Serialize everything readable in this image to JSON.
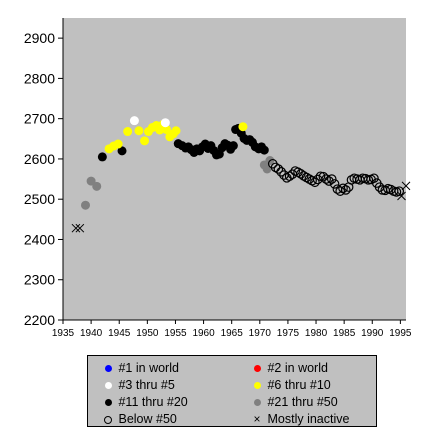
{
  "chart_data": {
    "type": "scatter",
    "x_ticks": [
      1935,
      1940,
      1945,
      1950,
      1955,
      1960,
      1965,
      1970,
      1975,
      1980,
      1985,
      1990,
      1995
    ],
    "y_ticks": [
      2200,
      2300,
      2400,
      2500,
      2600,
      2700,
      2800,
      2900
    ],
    "xlim": [
      1935,
      1996
    ],
    "ylim": [
      2200,
      2950
    ],
    "grid": false,
    "legend_position": "bottom",
    "categories": [
      {
        "key": "r1",
        "label": "#1 in world",
        "color": "#0000ff",
        "marker": "dot"
      },
      {
        "key": "r2",
        "label": "#2 in world",
        "color": "#ff0000",
        "marker": "dot"
      },
      {
        "key": "r3",
        "label": "#3 thru #5",
        "color": "#ffffff",
        "marker": "dot"
      },
      {
        "key": "r6",
        "label": "#6 thru #10",
        "color": "#ffff00",
        "marker": "dot"
      },
      {
        "key": "r11",
        "label": "#11 thru #20",
        "color": "#000000",
        "marker": "dot"
      },
      {
        "key": "r21",
        "label": "#21 thru #50",
        "color": "#808080",
        "marker": "dot"
      },
      {
        "key": "b50",
        "label": "Below #50",
        "color": "#000000",
        "marker": "ring"
      },
      {
        "key": "inactive",
        "label": "Mostly inactive",
        "color": "#000000",
        "marker": "x"
      }
    ],
    "series": [
      {
        "key": "inactive",
        "points": [
          [
            1937.3,
            2428
          ],
          [
            1938.0,
            2428
          ],
          [
            1995.2,
            2508
          ],
          [
            1996.0,
            2533
          ]
        ]
      },
      {
        "key": "r21",
        "points": [
          [
            1939.0,
            2485
          ],
          [
            1940.0,
            2545
          ],
          [
            1941.0,
            2532
          ],
          [
            1970.8,
            2585
          ],
          [
            1971.3,
            2575
          ],
          [
            1971.8,
            2596
          ]
        ]
      },
      {
        "key": "r11",
        "points": [
          [
            1942.0,
            2605
          ],
          [
            1945.5,
            2620
          ],
          [
            1955.5,
            2638
          ],
          [
            1956.2,
            2633
          ],
          [
            1956.8,
            2627
          ],
          [
            1957.3,
            2630
          ],
          [
            1957.8,
            2623
          ],
          [
            1958.3,
            2616
          ],
          [
            1958.8,
            2625
          ],
          [
            1959.3,
            2620
          ],
          [
            1959.8,
            2630
          ],
          [
            1960.3,
            2637
          ],
          [
            1960.8,
            2626
          ],
          [
            1961.3,
            2633
          ],
          [
            1961.8,
            2621
          ],
          [
            1962.3,
            2610
          ],
          [
            1962.8,
            2612
          ],
          [
            1963.3,
            2628
          ],
          [
            1963.8,
            2638
          ],
          [
            1964.3,
            2634
          ],
          [
            1964.8,
            2624
          ],
          [
            1965.3,
            2633
          ],
          [
            1965.7,
            2673
          ],
          [
            1966.2,
            2676
          ],
          [
            1966.7,
            2664
          ],
          [
            1967.2,
            2651
          ],
          [
            1967.7,
            2646
          ],
          [
            1968.2,
            2648
          ],
          [
            1968.7,
            2641
          ],
          [
            1969.2,
            2630
          ],
          [
            1969.8,
            2625
          ],
          [
            1970.3,
            2630
          ],
          [
            1970.8,
            2622
          ]
        ]
      },
      {
        "key": "r6",
        "points": [
          [
            1943.2,
            2625
          ],
          [
            1944.0,
            2632
          ],
          [
            1944.8,
            2637
          ],
          [
            1946.5,
            2668
          ],
          [
            1948.5,
            2670
          ],
          [
            1949.5,
            2645
          ],
          [
            1950.2,
            2668
          ],
          [
            1950.9,
            2678
          ],
          [
            1951.6,
            2683
          ],
          [
            1952.2,
            2672
          ],
          [
            1952.8,
            2686
          ],
          [
            1953.4,
            2673
          ],
          [
            1954.0,
            2655
          ],
          [
            1954.6,
            2662
          ],
          [
            1955.1,
            2670
          ],
          [
            1967.0,
            2680
          ]
        ]
      },
      {
        "key": "r3",
        "points": [
          [
            1947.7,
            2695
          ],
          [
            1953.2,
            2690
          ]
        ]
      },
      {
        "key": "b50",
        "points": [
          [
            1972.3,
            2588
          ],
          [
            1972.8,
            2579
          ],
          [
            1973.3,
            2575
          ],
          [
            1973.8,
            2568
          ],
          [
            1974.3,
            2560
          ],
          [
            1974.8,
            2553
          ],
          [
            1975.3,
            2557
          ],
          [
            1975.8,
            2562
          ],
          [
            1976.3,
            2570
          ],
          [
            1976.8,
            2567
          ],
          [
            1977.3,
            2563
          ],
          [
            1977.8,
            2558
          ],
          [
            1978.3,
            2554
          ],
          [
            1978.8,
            2550
          ],
          [
            1979.3,
            2546
          ],
          [
            1979.8,
            2542
          ],
          [
            1980.3,
            2549
          ],
          [
            1980.8,
            2557
          ],
          [
            1981.3,
            2556
          ],
          [
            1981.8,
            2550
          ],
          [
            1982.3,
            2545
          ],
          [
            1982.8,
            2550
          ],
          [
            1983.3,
            2538
          ],
          [
            1983.8,
            2525
          ],
          [
            1984.3,
            2520
          ],
          [
            1984.8,
            2527
          ],
          [
            1985.3,
            2523
          ],
          [
            1985.8,
            2530
          ],
          [
            1986.3,
            2548
          ],
          [
            1986.8,
            2552
          ],
          [
            1987.3,
            2550
          ],
          [
            1987.8,
            2548
          ],
          [
            1988.3,
            2552
          ],
          [
            1988.8,
            2551
          ],
          [
            1989.3,
            2548
          ],
          [
            1989.8,
            2549
          ],
          [
            1990.3,
            2552
          ],
          [
            1990.8,
            2540
          ],
          [
            1991.3,
            2530
          ],
          [
            1991.8,
            2523
          ],
          [
            1992.3,
            2522
          ],
          [
            1992.8,
            2526
          ],
          [
            1993.3,
            2524
          ],
          [
            1993.8,
            2520
          ],
          [
            1994.3,
            2518
          ],
          [
            1994.8,
            2520
          ]
        ]
      }
    ]
  }
}
